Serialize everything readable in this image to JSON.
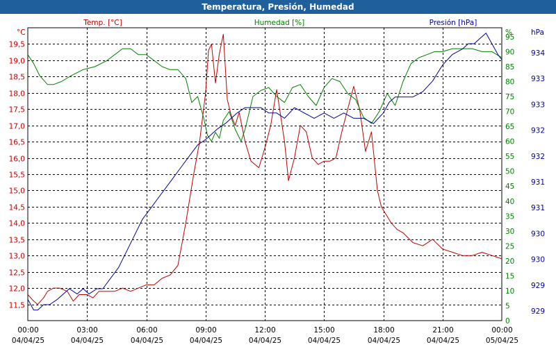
{
  "window": {
    "title": "Temperatura, Presión, Humedad"
  },
  "chart_data": {
    "type": "line",
    "title": "Temperatura, Presión, Humedad",
    "x_ticks": [
      {
        "time": "00:00",
        "date": "04/04/25"
      },
      {
        "time": "03:00",
        "date": "04/04/25"
      },
      {
        "time": "06:00",
        "date": "04/04/25"
      },
      {
        "time": "09:00",
        "date": "04/04/25"
      },
      {
        "time": "12:00",
        "date": "04/04/25"
      },
      {
        "time": "15:00",
        "date": "04/04/25"
      },
      {
        "time": "18:00",
        "date": "04/04/25"
      },
      {
        "time": "21:00",
        "date": "04/04/25"
      },
      {
        "time": "00:00",
        "date": "05/04/25"
      }
    ],
    "xlim_hours": [
      0,
      24
    ],
    "axes": {
      "temperature": {
        "unit": "°C",
        "legend": "Temp. [°C]",
        "color": "#c00000",
        "ylim": [
          11.0,
          20.0
        ],
        "ticks": [
          "11,5",
          "12,0",
          "12,5",
          "13,0",
          "13,5",
          "14,0",
          "14,5",
          "15,0",
          "15,5",
          "16,0",
          "16,5",
          "17,0",
          "17,5",
          "18,0",
          "18,5",
          "19,0",
          "19,5"
        ]
      },
      "humidity": {
        "unit": "%",
        "legend": "Humedad [%]",
        "color": "#008000",
        "ylim": [
          0,
          98
        ],
        "ticks": [
          "0",
          "5",
          "10",
          "15",
          "20",
          "25",
          "30",
          "35",
          "40",
          "45",
          "50",
          "55",
          "60",
          "65",
          "70",
          "75",
          "80",
          "85",
          "90",
          "95"
        ]
      },
      "pressure": {
        "unit": "hPa",
        "legend": "Presión [hPa]",
        "color": "#0000a0",
        "ylim": [
          928.8,
          934.3
        ],
        "ticks": [
          "929",
          "929",
          "930",
          "930",
          "931",
          "931",
          "932",
          "932",
          "933",
          "933",
          "934"
        ]
      }
    },
    "series": [
      {
        "name": "Temp. [°C]",
        "axis": "temperature",
        "x": [
          0,
          0.3,
          0.5,
          0.8,
          1.0,
          1.3,
          1.6,
          2.0,
          2.3,
          2.6,
          3.0,
          3.3,
          3.6,
          4.0,
          4.4,
          4.8,
          5.2,
          5.6,
          6.0,
          6.4,
          6.8,
          7.2,
          7.6,
          8.0,
          8.4,
          8.7,
          9.0,
          9.15,
          9.3,
          9.5,
          9.7,
          9.9,
          10.1,
          10.3,
          10.5,
          10.7,
          11.0,
          11.3,
          11.7,
          12.0,
          12.3,
          12.6,
          13.0,
          13.2,
          13.5,
          13.8,
          14.1,
          14.4,
          14.7,
          15.0,
          15.3,
          15.6,
          15.9,
          16.2,
          16.5,
          16.8,
          17.1,
          17.4,
          17.7,
          17.9,
          18.1,
          18.4,
          18.7,
          19.0,
          19.5,
          20.0,
          20.5,
          21.0,
          21.5,
          22.0,
          22.5,
          23.0,
          23.5,
          24.0
        ],
        "values": [
          11.8,
          11.6,
          11.5,
          11.7,
          11.9,
          12.0,
          12.0,
          11.9,
          11.6,
          11.8,
          11.8,
          11.7,
          11.9,
          11.9,
          11.9,
          12.0,
          11.9,
          12.0,
          12.1,
          12.1,
          12.3,
          12.4,
          12.7,
          14.0,
          15.5,
          16.5,
          18.0,
          19.3,
          19.5,
          18.3,
          19.2,
          19.8,
          17.8,
          17.3,
          17.0,
          17.4,
          16.5,
          15.9,
          15.7,
          16.3,
          17.0,
          18.1,
          16.5,
          15.3,
          16.0,
          17.0,
          16.8,
          16.0,
          15.8,
          15.9,
          15.9,
          16.0,
          16.8,
          17.5,
          18.2,
          17.5,
          16.2,
          16.8,
          15.0,
          14.5,
          14.3,
          14.0,
          13.8,
          13.7,
          13.4,
          13.3,
          13.5,
          13.2,
          13.1,
          13.0,
          13.0,
          13.1,
          13.0,
          12.9
        ]
      },
      {
        "name": "Humedad [%]",
        "axis": "humidity",
        "x": [
          0,
          0.3,
          0.6,
          1.0,
          1.3,
          1.7,
          2.2,
          2.8,
          3.4,
          4.0,
          4.4,
          4.8,
          5.2,
          5.6,
          6.0,
          6.4,
          6.8,
          7.2,
          7.6,
          8.0,
          8.3,
          8.6,
          8.9,
          9.1,
          9.3,
          9.5,
          9.7,
          9.9,
          10.2,
          10.5,
          10.8,
          11.0,
          11.4,
          11.8,
          12.2,
          12.6,
          13.0,
          13.4,
          13.8,
          14.2,
          14.6,
          15.0,
          15.4,
          15.8,
          16.2,
          16.6,
          17.0,
          17.4,
          17.8,
          18.2,
          18.6,
          19.0,
          19.4,
          19.8,
          20.2,
          20.6,
          21.0,
          21.5,
          22.0,
          22.5,
          23.0,
          23.5,
          24.0
        ],
        "values": [
          89,
          86,
          82,
          79,
          79,
          80,
          82,
          84,
          85,
          87,
          89,
          91,
          91,
          89,
          89,
          87,
          85,
          84,
          84,
          81,
          73,
          75,
          68,
          62,
          60,
          63,
          61,
          67,
          70,
          64,
          60,
          64,
          75,
          77,
          78,
          75,
          73,
          78,
          79,
          75,
          72,
          78,
          81,
          80,
          76,
          74,
          68,
          66,
          70,
          76,
          72,
          80,
          86,
          88,
          89,
          90,
          90,
          91,
          91,
          91,
          90,
          90,
          88
        ]
      },
      {
        "name": "Presión [hPa]",
        "axis": "pressure",
        "x": [
          0,
          0.3,
          0.5,
          0.8,
          1.1,
          1.5,
          1.8,
          2.1,
          2.5,
          2.8,
          3.1,
          3.5,
          3.8,
          4.2,
          4.6,
          5.0,
          5.4,
          5.8,
          6.2,
          6.6,
          7.0,
          7.4,
          7.8,
          8.2,
          8.6,
          9.0,
          9.3,
          9.6,
          10.0,
          10.3,
          10.6,
          11.0,
          11.4,
          11.8,
          12.2,
          12.6,
          13.0,
          13.5,
          14.0,
          14.5,
          15.0,
          15.5,
          16.0,
          16.5,
          17.0,
          17.5,
          18.0,
          18.3,
          18.6,
          19.0,
          19.5,
          20.0,
          20.5,
          21.0,
          21.5,
          22.0,
          22.3,
          22.6,
          22.9,
          23.2,
          23.5,
          23.8,
          24.0
        ],
        "values": [
          929.2,
          929.0,
          929.0,
          929.1,
          929.1,
          929.2,
          929.3,
          929.4,
          929.3,
          929.4,
          929.3,
          929.4,
          929.4,
          929.6,
          929.8,
          930.1,
          930.4,
          930.7,
          930.9,
          931.1,
          931.3,
          931.5,
          931.7,
          931.9,
          932.1,
          932.2,
          932.3,
          932.4,
          932.5,
          932.6,
          932.7,
          932.8,
          932.8,
          932.8,
          932.7,
          932.7,
          932.6,
          932.8,
          932.7,
          932.6,
          932.7,
          932.6,
          932.7,
          932.6,
          932.6,
          932.5,
          932.7,
          932.9,
          933.0,
          933.0,
          933.0,
          933.1,
          933.3,
          933.6,
          933.8,
          933.9,
          934.0,
          934.0,
          934.1,
          934.2,
          934.0,
          933.8,
          933.7
        ]
      }
    ]
  }
}
